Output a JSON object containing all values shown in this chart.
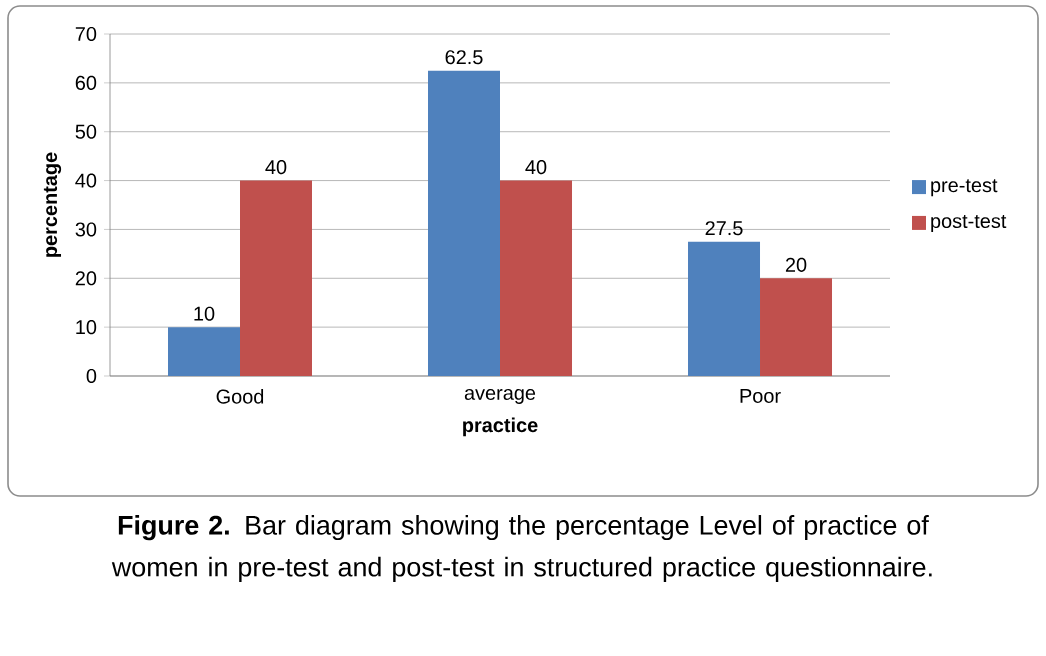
{
  "chart_data": {
    "type": "bar",
    "categories": [
      "Good",
      "average",
      "Poor"
    ],
    "series": [
      {
        "name": "pre-test",
        "color": "#4f81bd",
        "values": [
          10,
          62.5,
          27.5
        ]
      },
      {
        "name": "post-test",
        "color": "#c0504d",
        "values": [
          40,
          40,
          20
        ]
      }
    ],
    "xlabel": "practice",
    "ylabel": "percentage",
    "ylim": [
      0,
      70
    ],
    "yticks": [
      0,
      10,
      20,
      30,
      40,
      50,
      60,
      70
    ],
    "grid": "y",
    "legend": "right",
    "data_labels": true,
    "annotations": [
      "**Figure 2.** Bar diagram showing the percentage Level of practice of women in pre-test and post-test in structured practice questionnaire."
    ]
  }
}
